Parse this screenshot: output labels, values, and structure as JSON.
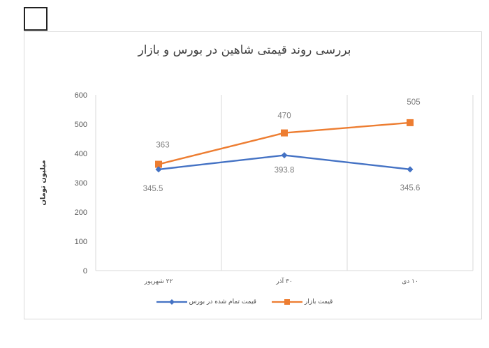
{
  "title": "بررسی روند قیمتی شاهین در بورس و بازار",
  "y_axis": {
    "label": "میلیون تومان",
    "ticks": [
      "0",
      "100",
      "200",
      "300",
      "400",
      "500",
      "600"
    ]
  },
  "x_axis": {
    "ticks": [
      "۲۲ شهریور",
      "۳۰ آذر",
      "۱۰ دی"
    ]
  },
  "legend": [
    {
      "label": "قیمت تمام شده در بورس",
      "color": "#4472c4",
      "marker": "diamond"
    },
    {
      "label": "قیمت بازار",
      "color": "#ed7d31",
      "marker": "square"
    }
  ],
  "chart_data": {
    "type": "line",
    "title": "بررسی روند قیمتی شاهین در بورس و بازار",
    "xlabel": "",
    "ylabel": "میلیون تومان",
    "categories": [
      "۲۲ شهریور",
      "۳۰ آذر",
      "۱۰ دی"
    ],
    "ylim": [
      0,
      600
    ],
    "yticks": [
      0,
      100,
      200,
      300,
      400,
      500,
      600
    ],
    "grid": {
      "vertical": true,
      "horizontal": false
    },
    "legend_position": "bottom",
    "series": [
      {
        "name": "قیمت تمام شده در بورس",
        "color": "#4472c4",
        "marker": "diamond",
        "values": [
          345.5,
          393.8,
          345.6
        ],
        "labels": [
          "345.5",
          "393.8",
          "345.6"
        ]
      },
      {
        "name": "قیمت بازار",
        "color": "#ed7d31",
        "marker": "square",
        "values": [
          363,
          470,
          505
        ],
        "labels": [
          "363",
          "470",
          "505"
        ]
      }
    ]
  }
}
